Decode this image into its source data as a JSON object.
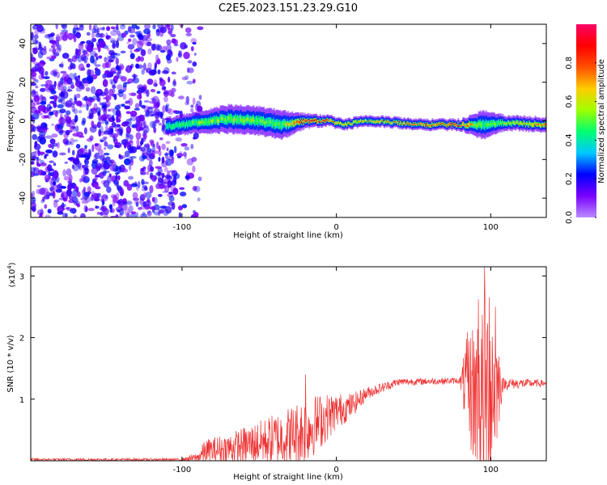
{
  "figure": {
    "title": "C2E5.2023.151.23.29.G10"
  },
  "chart_data": [
    {
      "type": "heatmap",
      "xlabel": "Height of straight line (km)",
      "ylabel": "Frequency (Hz)",
      "xlim": [
        -198,
        136
      ],
      "ylim": [
        -50,
        50
      ],
      "x_ticks": [
        -100,
        0,
        100
      ],
      "x_tick_labels": [
        "-100",
        "0",
        "100"
      ],
      "y_ticks": [
        -40,
        -20,
        0,
        20,
        40
      ],
      "y_tick_labels": [
        "-40",
        "-20",
        "0",
        "20",
        "40"
      ],
      "colorbar": {
        "label": "Normalized spectral amplitude",
        "range": [
          0,
          1
        ],
        "ticks": [
          0.0,
          0.2,
          0.4,
          0.6,
          0.8
        ],
        "tick_labels": [
          "0.0",
          "0.2",
          "0.4",
          "0.6",
          "0.8"
        ],
        "colormap": [
          "#b98cff",
          "#7a00ff",
          "#0000ff",
          "#00c8ff",
          "#00ff70",
          "#a0ff00",
          "#ffcc00",
          "#ff5000",
          "#ff0000",
          "#ff0066"
        ]
      },
      "noise_region": {
        "x_range": [
          -198,
          -98
        ],
        "typical_value": 0.1
      },
      "ridge": [
        {
          "x": -110,
          "center_hz": -3,
          "width_hz": 5,
          "value": 0.45
        },
        {
          "x": -90,
          "center_hz": -1,
          "width_hz": 6,
          "value": 0.55
        },
        {
          "x": -70,
          "center_hz": 1,
          "width_hz": 8,
          "value": 0.6
        },
        {
          "x": -50,
          "center_hz": 0,
          "width_hz": 8,
          "value": 0.55
        },
        {
          "x": -35,
          "center_hz": -2,
          "width_hz": 8,
          "value": 0.55
        },
        {
          "x": -20,
          "center_hz": 0,
          "width_hz": 4,
          "value": 0.95
        },
        {
          "x": -5,
          "center_hz": 0,
          "width_hz": 3,
          "value": 0.9
        },
        {
          "x": 5,
          "center_hz": -2,
          "width_hz": 3,
          "value": 0.7
        },
        {
          "x": 20,
          "center_hz": 0,
          "width_hz": 3,
          "value": 0.75
        },
        {
          "x": 40,
          "center_hz": -1,
          "width_hz": 3,
          "value": 0.8
        },
        {
          "x": 60,
          "center_hz": -2,
          "width_hz": 3,
          "value": 0.85
        },
        {
          "x": 80,
          "center_hz": -2,
          "width_hz": 3,
          "value": 0.95
        },
        {
          "x": 95,
          "center_hz": -2,
          "width_hz": 8,
          "value": 0.5
        },
        {
          "x": 110,
          "center_hz": -1,
          "width_hz": 4,
          "value": 0.6
        },
        {
          "x": 136,
          "center_hz": -2,
          "width_hz": 4,
          "value": 0.85
        }
      ]
    },
    {
      "type": "line",
      "xlabel": "Height of straight line (km)",
      "ylabel": "SNR (10 * v/v)",
      "y_multiplier_label": "(x10",
      "y_multiplier_exp": "4",
      "y_multiplier_close": ")",
      "xlim": [
        -198,
        136
      ],
      "ylim": [
        0,
        3.15
      ],
      "x_ticks": [
        -100,
        0,
        100
      ],
      "x_tick_labels": [
        "-100",
        "0",
        "100"
      ],
      "y_ticks": [
        1,
        2,
        3
      ],
      "y_tick_labels": [
        "1",
        "2",
        "3"
      ],
      "color": "#ee3333",
      "envelope": [
        {
          "x": -198,
          "base": 0.02,
          "amp": 0.02
        },
        {
          "x": -100,
          "base": 0.02,
          "amp": 0.02
        },
        {
          "x": -90,
          "base": 0.05,
          "amp": 0.08
        },
        {
          "x": -85,
          "base": 0.15,
          "amp": 0.2
        },
        {
          "x": -70,
          "base": 0.2,
          "amp": 0.25
        },
        {
          "x": -50,
          "base": 0.3,
          "amp": 0.35
        },
        {
          "x": -30,
          "base": 0.4,
          "amp": 0.5
        },
        {
          "x": -20,
          "base": 0.5,
          "amp": 0.55
        },
        {
          "x": -10,
          "base": 0.65,
          "amp": 0.45
        },
        {
          "x": 0,
          "base": 0.8,
          "amp": 0.3
        },
        {
          "x": 10,
          "base": 0.9,
          "amp": 0.2
        },
        {
          "x": 20,
          "base": 1.1,
          "amp": 0.1
        },
        {
          "x": 40,
          "base": 1.28,
          "amp": 0.06
        },
        {
          "x": 80,
          "base": 1.3,
          "amp": 0.05
        },
        {
          "x": 85,
          "base": 1.2,
          "amp": 0.9
        },
        {
          "x": 95,
          "base": 1.0,
          "amp": 1.6
        },
        {
          "x": 100,
          "base": 1.2,
          "amp": 1.8
        },
        {
          "x": 108,
          "base": 1.25,
          "amp": 0.1
        },
        {
          "x": 136,
          "base": 1.26,
          "amp": 0.05
        }
      ],
      "spikes": [
        {
          "x": -20,
          "y": 1.4
        },
        {
          "x": 92,
          "y": 2.62
        },
        {
          "x": 96,
          "y": 3.15
        },
        {
          "x": 99,
          "y": 2.65
        },
        {
          "x": 103,
          "y": 2.5
        }
      ]
    }
  ]
}
